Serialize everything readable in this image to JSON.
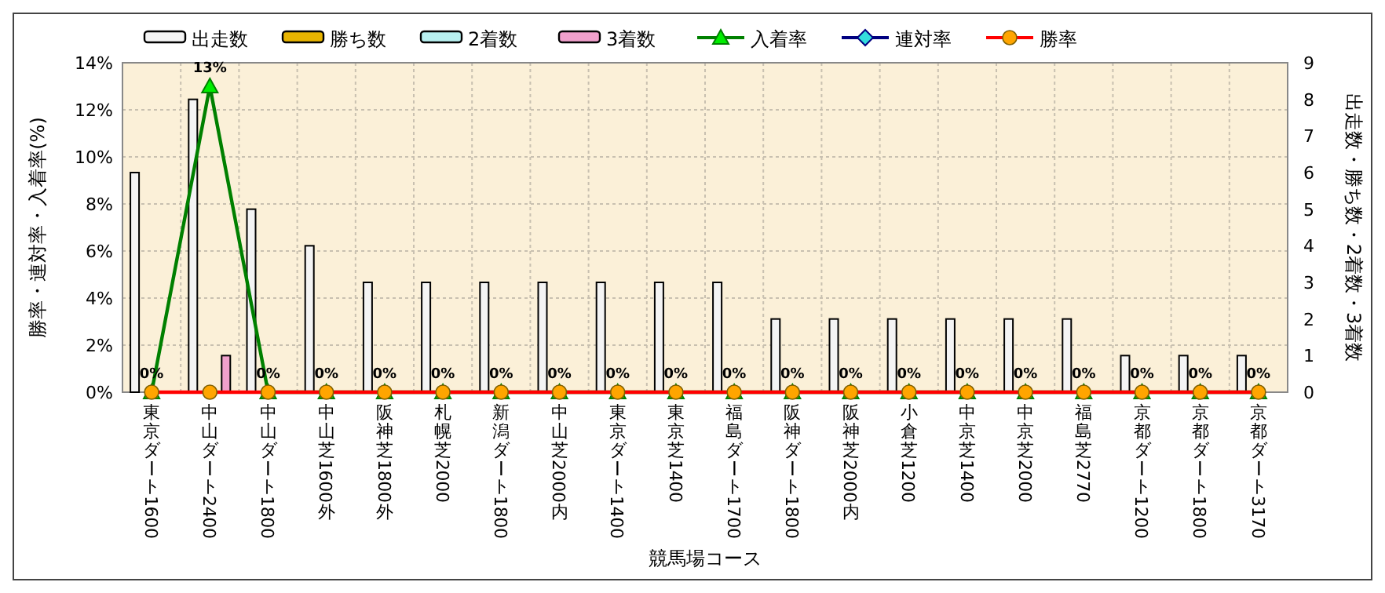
{
  "chart_data": {
    "type": "bar",
    "categories": [
      "東京ダート1600",
      "中山ダート2400",
      "中山ダート1800",
      "中山芝1600外",
      "阪神芝1800外",
      "札幌芝2000",
      "新潟ダート1800",
      "中山芝2000内",
      "東京ダート1400",
      "東京芝1400",
      "福島ダート1700",
      "阪神ダート1800",
      "阪神芝2000内",
      "小倉芝1200",
      "中京芝1400",
      "中京芝2000",
      "福島芝2770",
      "京都ダート1200",
      "京都ダート1800",
      "京都ダート3170"
    ],
    "xlabel": "競馬場コース",
    "ylabel": "勝率・連対率・入着率(%)",
    "y2label": "出走数・勝ち数・2着数・3着数",
    "ylim": [
      0,
      14
    ],
    "yticks": [
      {
        "value": 0,
        "label": "0%"
      },
      {
        "value": 2,
        "label": "2%"
      },
      {
        "value": 4,
        "label": "4%"
      },
      {
        "value": 6,
        "label": "6%"
      },
      {
        "value": 8,
        "label": "8%"
      },
      {
        "value": 10,
        "label": "10%"
      },
      {
        "value": 12,
        "label": "12%"
      },
      {
        "value": 14,
        "label": "14%"
      }
    ],
    "y2lim": [
      0,
      9
    ],
    "y2ticks": [
      0,
      1,
      2,
      3,
      4,
      5,
      6,
      7,
      8,
      9
    ],
    "grid": true,
    "legend": "top",
    "series": [
      {
        "name": "出走数",
        "axis": "y2",
        "color": "#f4f4f4",
        "values": [
          6,
          8,
          5,
          4,
          3,
          3,
          3,
          3,
          3,
          3,
          3,
          2,
          2,
          2,
          2,
          2,
          2,
          1,
          1,
          1
        ]
      },
      {
        "name": "勝ち数",
        "axis": "y2",
        "color": "#e8b400",
        "values": [
          0,
          0,
          0,
          0,
          0,
          0,
          0,
          0,
          0,
          0,
          0,
          0,
          0,
          0,
          0,
          0,
          0,
          0,
          0,
          0
        ]
      },
      {
        "name": "2着数",
        "axis": "y2",
        "color": "#b8f0f0",
        "values": [
          0,
          0,
          0,
          0,
          0,
          0,
          0,
          0,
          0,
          0,
          0,
          0,
          0,
          0,
          0,
          0,
          0,
          0,
          0,
          0
        ]
      },
      {
        "name": "3着数",
        "axis": "y2",
        "color": "#f0a0cc",
        "values": [
          0,
          1,
          0,
          0,
          0,
          0,
          0,
          0,
          0,
          0,
          0,
          0,
          0,
          0,
          0,
          0,
          0,
          0,
          0,
          0
        ]
      },
      {
        "name": "入着率",
        "type": "line",
        "color": "#008000",
        "marker": "triangle",
        "values": [
          0,
          13,
          0,
          0,
          0,
          0,
          0,
          0,
          0,
          0,
          0,
          0,
          0,
          0,
          0,
          0,
          0,
          0,
          0,
          0
        ],
        "value_labels": [
          "0%",
          "13%",
          "0%",
          "0%",
          "0%",
          "0%",
          "0%",
          "0%",
          "0%",
          "0%",
          "0%",
          "0%",
          "0%",
          "0%",
          "0%",
          "0%",
          "0%",
          "0%",
          "0%",
          "0%"
        ]
      },
      {
        "name": "連対率",
        "type": "line",
        "color": "#000080",
        "marker": "diamond",
        "values": [
          null,
          null,
          null,
          null,
          null,
          null,
          null,
          null,
          null,
          null,
          null,
          null,
          null,
          null,
          null,
          null,
          null,
          null,
          null,
          null
        ]
      },
      {
        "name": "勝率",
        "type": "line",
        "color": "#ff0000",
        "marker": "circle",
        "values": [
          0,
          0,
          0,
          0,
          0,
          0,
          0,
          0,
          0,
          0,
          0,
          0,
          0,
          0,
          0,
          0,
          0,
          0,
          0,
          0
        ]
      }
    ]
  }
}
